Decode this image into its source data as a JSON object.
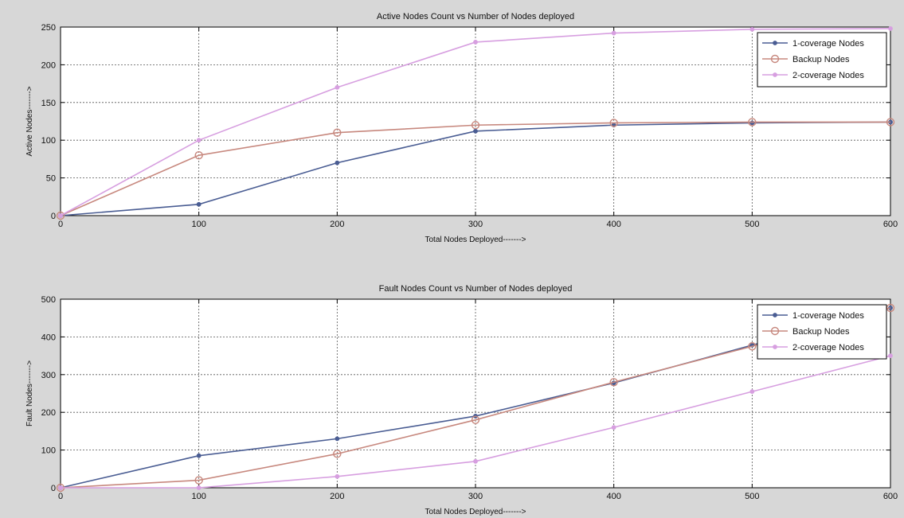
{
  "chart_data": [
    {
      "type": "line",
      "title": "Active Nodes Count vs Number of Nodes deployed",
      "xlabel": "Total Nodes Deployed------->",
      "ylabel": "Active Nodes------->",
      "x": [
        0,
        100,
        200,
        300,
        400,
        500,
        600
      ],
      "xlim": [
        0,
        600
      ],
      "ylim": [
        0,
        250
      ],
      "xticks": [
        0,
        100,
        200,
        300,
        400,
        500,
        600
      ],
      "yticks": [
        0,
        50,
        100,
        150,
        200,
        250
      ],
      "grid": true,
      "legend_position": "top-right",
      "series": [
        {
          "name": "1-coverage Nodes",
          "color": "#4a5d93",
          "marker": "dot",
          "values": [
            0,
            15,
            70,
            112,
            120,
            123,
            124
          ]
        },
        {
          "name": "Backup Nodes",
          "color": "#c7887e",
          "marker": "circle",
          "values": [
            0,
            80,
            110,
            120,
            123,
            124,
            124
          ]
        },
        {
          "name": "2-coverage Nodes",
          "color": "#d79fe0",
          "marker": "dot",
          "values": [
            0,
            100,
            170,
            230,
            242,
            247,
            248
          ]
        }
      ]
    },
    {
      "type": "line",
      "title": "Fault Nodes Count vs Number of Nodes deployed",
      "xlabel": "Total Nodes Deployed------->",
      "ylabel": "Fault Nodes------->",
      "x": [
        0,
        100,
        200,
        300,
        400,
        500,
        600
      ],
      "xlim": [
        0,
        600
      ],
      "ylim": [
        0,
        500
      ],
      "xticks": [
        0,
        100,
        200,
        300,
        400,
        500,
        600
      ],
      "yticks": [
        0,
        100,
        200,
        300,
        400,
        500
      ],
      "grid": true,
      "legend_position": "top-right",
      "series": [
        {
          "name": "1-coverage Nodes",
          "color": "#4a5d93",
          "marker": "dot",
          "values": [
            0,
            85,
            130,
            190,
            278,
            378,
            477
          ]
        },
        {
          "name": "Backup Nodes",
          "color": "#c7887e",
          "marker": "circle",
          "values": [
            0,
            20,
            90,
            180,
            280,
            375,
            477
          ]
        },
        {
          "name": "2-coverage Nodes",
          "color": "#d79fe0",
          "marker": "dot",
          "values": [
            0,
            0,
            30,
            70,
            160,
            255,
            350
          ]
        }
      ]
    }
  ]
}
